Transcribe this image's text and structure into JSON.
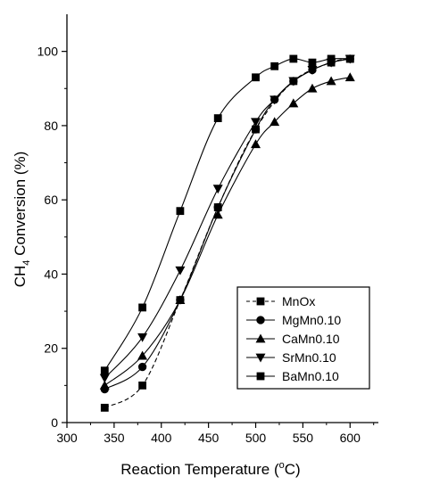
{
  "chart_data": {
    "type": "line",
    "title": "",
    "xlabel": {
      "text": "Reaction Temperature (",
      "sup": "o",
      "text_after": "C)"
    },
    "ylabel": {
      "text_before": "CH",
      "sub": "4",
      "text_after": " Conversion (%)"
    },
    "xlim": [
      300,
      630
    ],
    "ylim": [
      0,
      110
    ],
    "xticks": [
      300,
      350,
      400,
      450,
      500,
      550,
      600
    ],
    "yticks": [
      0,
      20,
      40,
      60,
      80,
      100
    ],
    "grid": false,
    "legend_position": "lower-right",
    "series": [
      {
        "name": "MnOx",
        "marker": "square",
        "line_style": "dashed",
        "x": [
          340,
          380,
          420,
          460,
          500,
          540,
          580,
          600
        ],
        "y": [
          4,
          10,
          33,
          58,
          79,
          92,
          97,
          98
        ]
      },
      {
        "name": "MgMn0.10",
        "marker": "circle",
        "line_style": "solid",
        "x": [
          340,
          380,
          420,
          460,
          500,
          520,
          540,
          560,
          580,
          600
        ],
        "y": [
          9,
          15,
          33,
          58,
          79,
          87,
          92,
          95,
          97,
          98
        ]
      },
      {
        "name": "CaMn0.10",
        "marker": "triangle-up",
        "line_style": "solid",
        "x": [
          340,
          380,
          420,
          460,
          500,
          520,
          540,
          560,
          580,
          600
        ],
        "y": [
          10,
          18,
          33,
          56,
          75,
          81,
          86,
          90,
          92,
          93
        ]
      },
      {
        "name": "SrMn0.10",
        "marker": "triangle-down",
        "line_style": "solid",
        "x": [
          340,
          380,
          420,
          460,
          500,
          520,
          540,
          560,
          580,
          600
        ],
        "y": [
          12,
          23,
          41,
          63,
          81,
          87,
          92,
          95,
          97,
          98
        ]
      },
      {
        "name": "BaMn0.10",
        "marker": "square",
        "line_style": "solid",
        "x": [
          340,
          380,
          420,
          460,
          500,
          520,
          540,
          560,
          580,
          600
        ],
        "y": [
          14,
          31,
          57,
          82,
          93,
          96,
          98,
          97,
          98,
          98
        ]
      }
    ]
  }
}
